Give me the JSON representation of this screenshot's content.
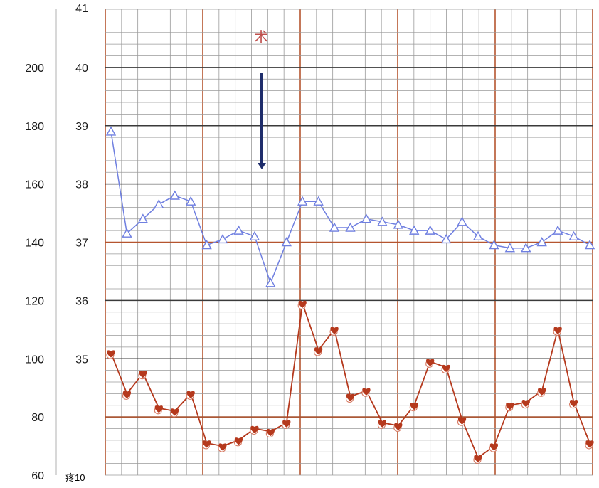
{
  "chart_data": {
    "type": "line",
    "axes": {
      "pulse": {
        "ticks": [
          "200",
          "180",
          "160",
          "140",
          "120",
          "100",
          "80",
          "60"
        ],
        "range": [
          60,
          225
        ]
      },
      "temperature": {
        "ticks": [
          "41",
          "40",
          "39",
          "38",
          "37",
          "36",
          "35"
        ],
        "range": [
          33,
          41
        ]
      },
      "bottom_label": "疼10"
    },
    "annotation": {
      "text": "术",
      "color": "#c0504d"
    },
    "grid": true,
    "colors": {
      "temperature": "#6f7fe0",
      "pulse": "#b5391d",
      "grid_minor": "#9a9a9a",
      "grid_major": "#3a3a3a",
      "grid_day": "#b5552f",
      "arrow": "#1f2d6b"
    },
    "series": [
      {
        "marker": "triangle",
        "axis": "temperature",
        "values": [
          38.9,
          37.15,
          37.4,
          37.65,
          37.8,
          37.7,
          36.95,
          37.05,
          37.2,
          37.1,
          36.3,
          37.0,
          37.7,
          37.7,
          37.25,
          37.25,
          37.4,
          37.35,
          37.3,
          37.2,
          37.2,
          37.05,
          37.35,
          37.1,
          36.95,
          36.9,
          36.9,
          37.0,
          37.2,
          37.1,
          36.95
        ]
      },
      {
        "marker": "heart",
        "axis": "pulse",
        "values": [
          102,
          88,
          95,
          83,
          82,
          88,
          71,
          70,
          72,
          76,
          75,
          78,
          119,
          103,
          110,
          87,
          89,
          78,
          77,
          84,
          99,
          97,
          79,
          66,
          70,
          84,
          85,
          89,
          110,
          85,
          71
        ]
      }
    ]
  }
}
